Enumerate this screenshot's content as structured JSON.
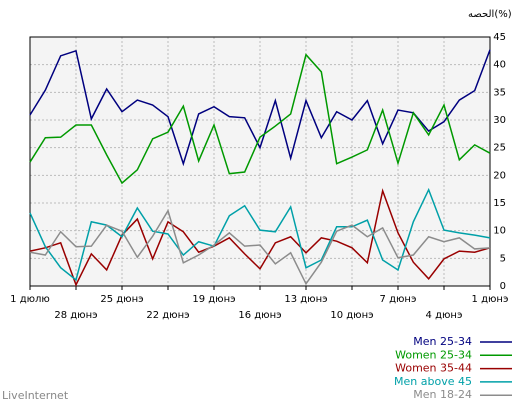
{
  "chart_data": {
    "type": "line",
    "ylabel": "الحصه(%)",
    "watermark": "LiveInternet",
    "categories": [
      "1 дюлю",
      null,
      null,
      "28 дюнэ",
      null,
      null,
      "25 дюнэ",
      null,
      null,
      "22 дюнэ",
      null,
      null,
      "19 дюнэ",
      null,
      null,
      "16 дюнэ",
      null,
      null,
      "13 дюнэ",
      null,
      null,
      "10 дюнэ",
      null,
      null,
      "7 дюнэ",
      null,
      null,
      "4 дюнэ",
      null,
      null,
      "1 дюнэ"
    ],
    "series": [
      {
        "name": "Men 25-34",
        "color": "#00007f",
        "values": [
          30.9,
          35.4,
          41.6,
          42.5,
          30.2,
          35.6,
          31.5,
          33.6,
          32.7,
          30.6,
          22.1,
          31.1,
          32.4,
          30.6,
          30.4,
          25.0,
          33.5,
          23.1,
          33.5,
          26.8,
          31.5,
          30.0,
          33.5,
          25.7,
          31.8,
          31.3,
          28.0,
          29.7,
          33.6,
          35.3,
          42.7
        ]
      },
      {
        "name": "Women 25-34",
        "color": "#009900",
        "values": [
          22.4,
          26.8,
          26.9,
          29.1,
          29.1,
          23.7,
          18.6,
          21.0,
          26.6,
          27.8,
          32.5,
          22.6,
          29.1,
          20.3,
          20.6,
          26.9,
          28.9,
          31.1,
          41.8,
          38.7,
          22.1,
          23.3,
          24.6,
          31.8,
          22.2,
          31.3,
          27.3,
          32.7,
          22.8,
          25.5,
          24.0
        ]
      },
      {
        "name": "Women 35-44",
        "color": "#990000",
        "values": [
          6.3,
          6.9,
          7.8,
          0.2,
          5.8,
          2.9,
          9.2,
          12.1,
          4.9,
          11.6,
          9.8,
          6.1,
          7.2,
          8.7,
          5.8,
          3.1,
          7.8,
          8.9,
          6.0,
          8.7,
          8.1,
          6.9,
          4.2,
          17.2,
          9.6,
          4.3,
          1.3,
          4.9,
          6.3,
          6.1,
          6.9
        ]
      },
      {
        "name": "Men above 45",
        "color": "#00a0a8",
        "values": [
          13.2,
          7.1,
          3.3,
          1.1,
          11.6,
          11.0,
          8.9,
          14.1,
          9.9,
          9.4,
          5.6,
          8.0,
          7.2,
          12.7,
          14.5,
          10.1,
          9.8,
          14.3,
          3.3,
          4.7,
          10.7,
          10.7,
          11.9,
          4.7,
          2.9,
          11.6,
          17.4,
          10.1,
          9.6,
          9.2,
          8.7
        ]
      },
      {
        "name": "Men 18-24",
        "color": "#8c8c8c",
        "values": [
          6.1,
          5.6,
          9.8,
          7.1,
          7.2,
          11.0,
          9.9,
          5.2,
          9.0,
          13.6,
          4.2,
          5.6,
          7.4,
          9.6,
          7.2,
          7.4,
          4.0,
          6.0,
          0.4,
          4.3,
          9.9,
          11.0,
          8.9,
          10.5,
          5.1,
          5.6,
          8.9,
          8.0,
          8.7,
          6.7,
          6.9
        ]
      }
    ],
    "ylim": [
      0,
      45
    ],
    "yticks": [
      0,
      5,
      10,
      15,
      20,
      25,
      30,
      35,
      40,
      45
    ],
    "grid": true
  }
}
